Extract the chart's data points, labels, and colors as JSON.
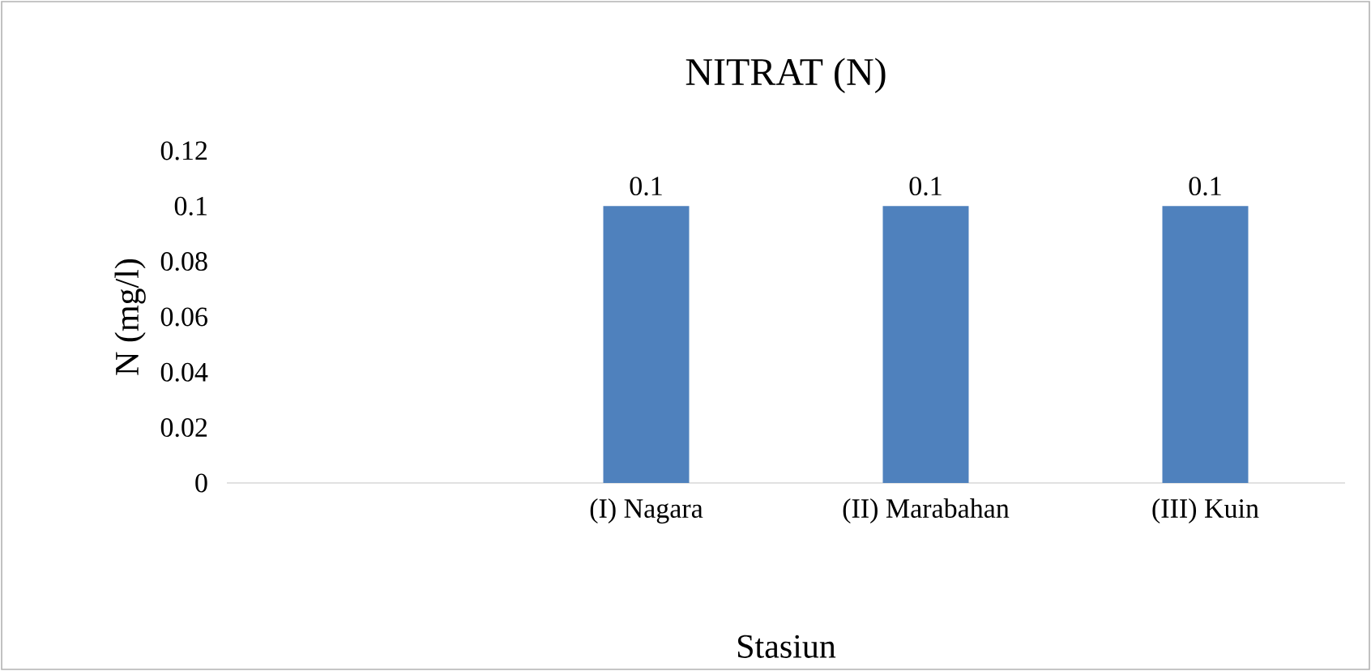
{
  "chart_data": {
    "type": "bar",
    "title": "NITRAT (N)",
    "xlabel": "Stasiun",
    "ylabel": "N (mg/l)",
    "categories": [
      null,
      "(I) Nagara",
      "(II) Marabahan",
      "(III) Kuin"
    ],
    "values": [
      null,
      0.1,
      0.1,
      0.1
    ],
    "color": "#4f81bd",
    "ylim": [
      0,
      0.12
    ],
    "yticks": [
      0,
      0.02,
      0.04,
      0.06,
      0.08,
      0.1,
      0.12
    ],
    "data_labels": true,
    "grid": false
  }
}
